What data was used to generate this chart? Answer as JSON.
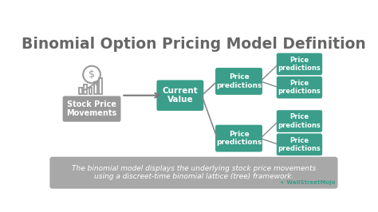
{
  "title": "Binomial Option Pricing Model Definition",
  "title_fontsize": 13.5,
  "title_color": "#666666",
  "bg_color": "#ffffff",
  "footer_text": "The binomial model displays the underlying stock price movements\nusing a discreet-time binomial lattice (tree) framework.",
  "footer_bg": "#999999",
  "teal_color": "#3a9e8a",
  "gray_box_color": "#999999",
  "white": "#ffffff",
  "stock_label": "Stock Price\nMovements",
  "current_label": "Current\nValue",
  "mid_label": "Price\npredictions",
  "leaf_label": "Price\npredictions",
  "watermark": "+ WallStreetMojo",
  "watermark_color": "#3a9e8a",
  "arrow_color": "#777777",
  "line_color": "#888888"
}
